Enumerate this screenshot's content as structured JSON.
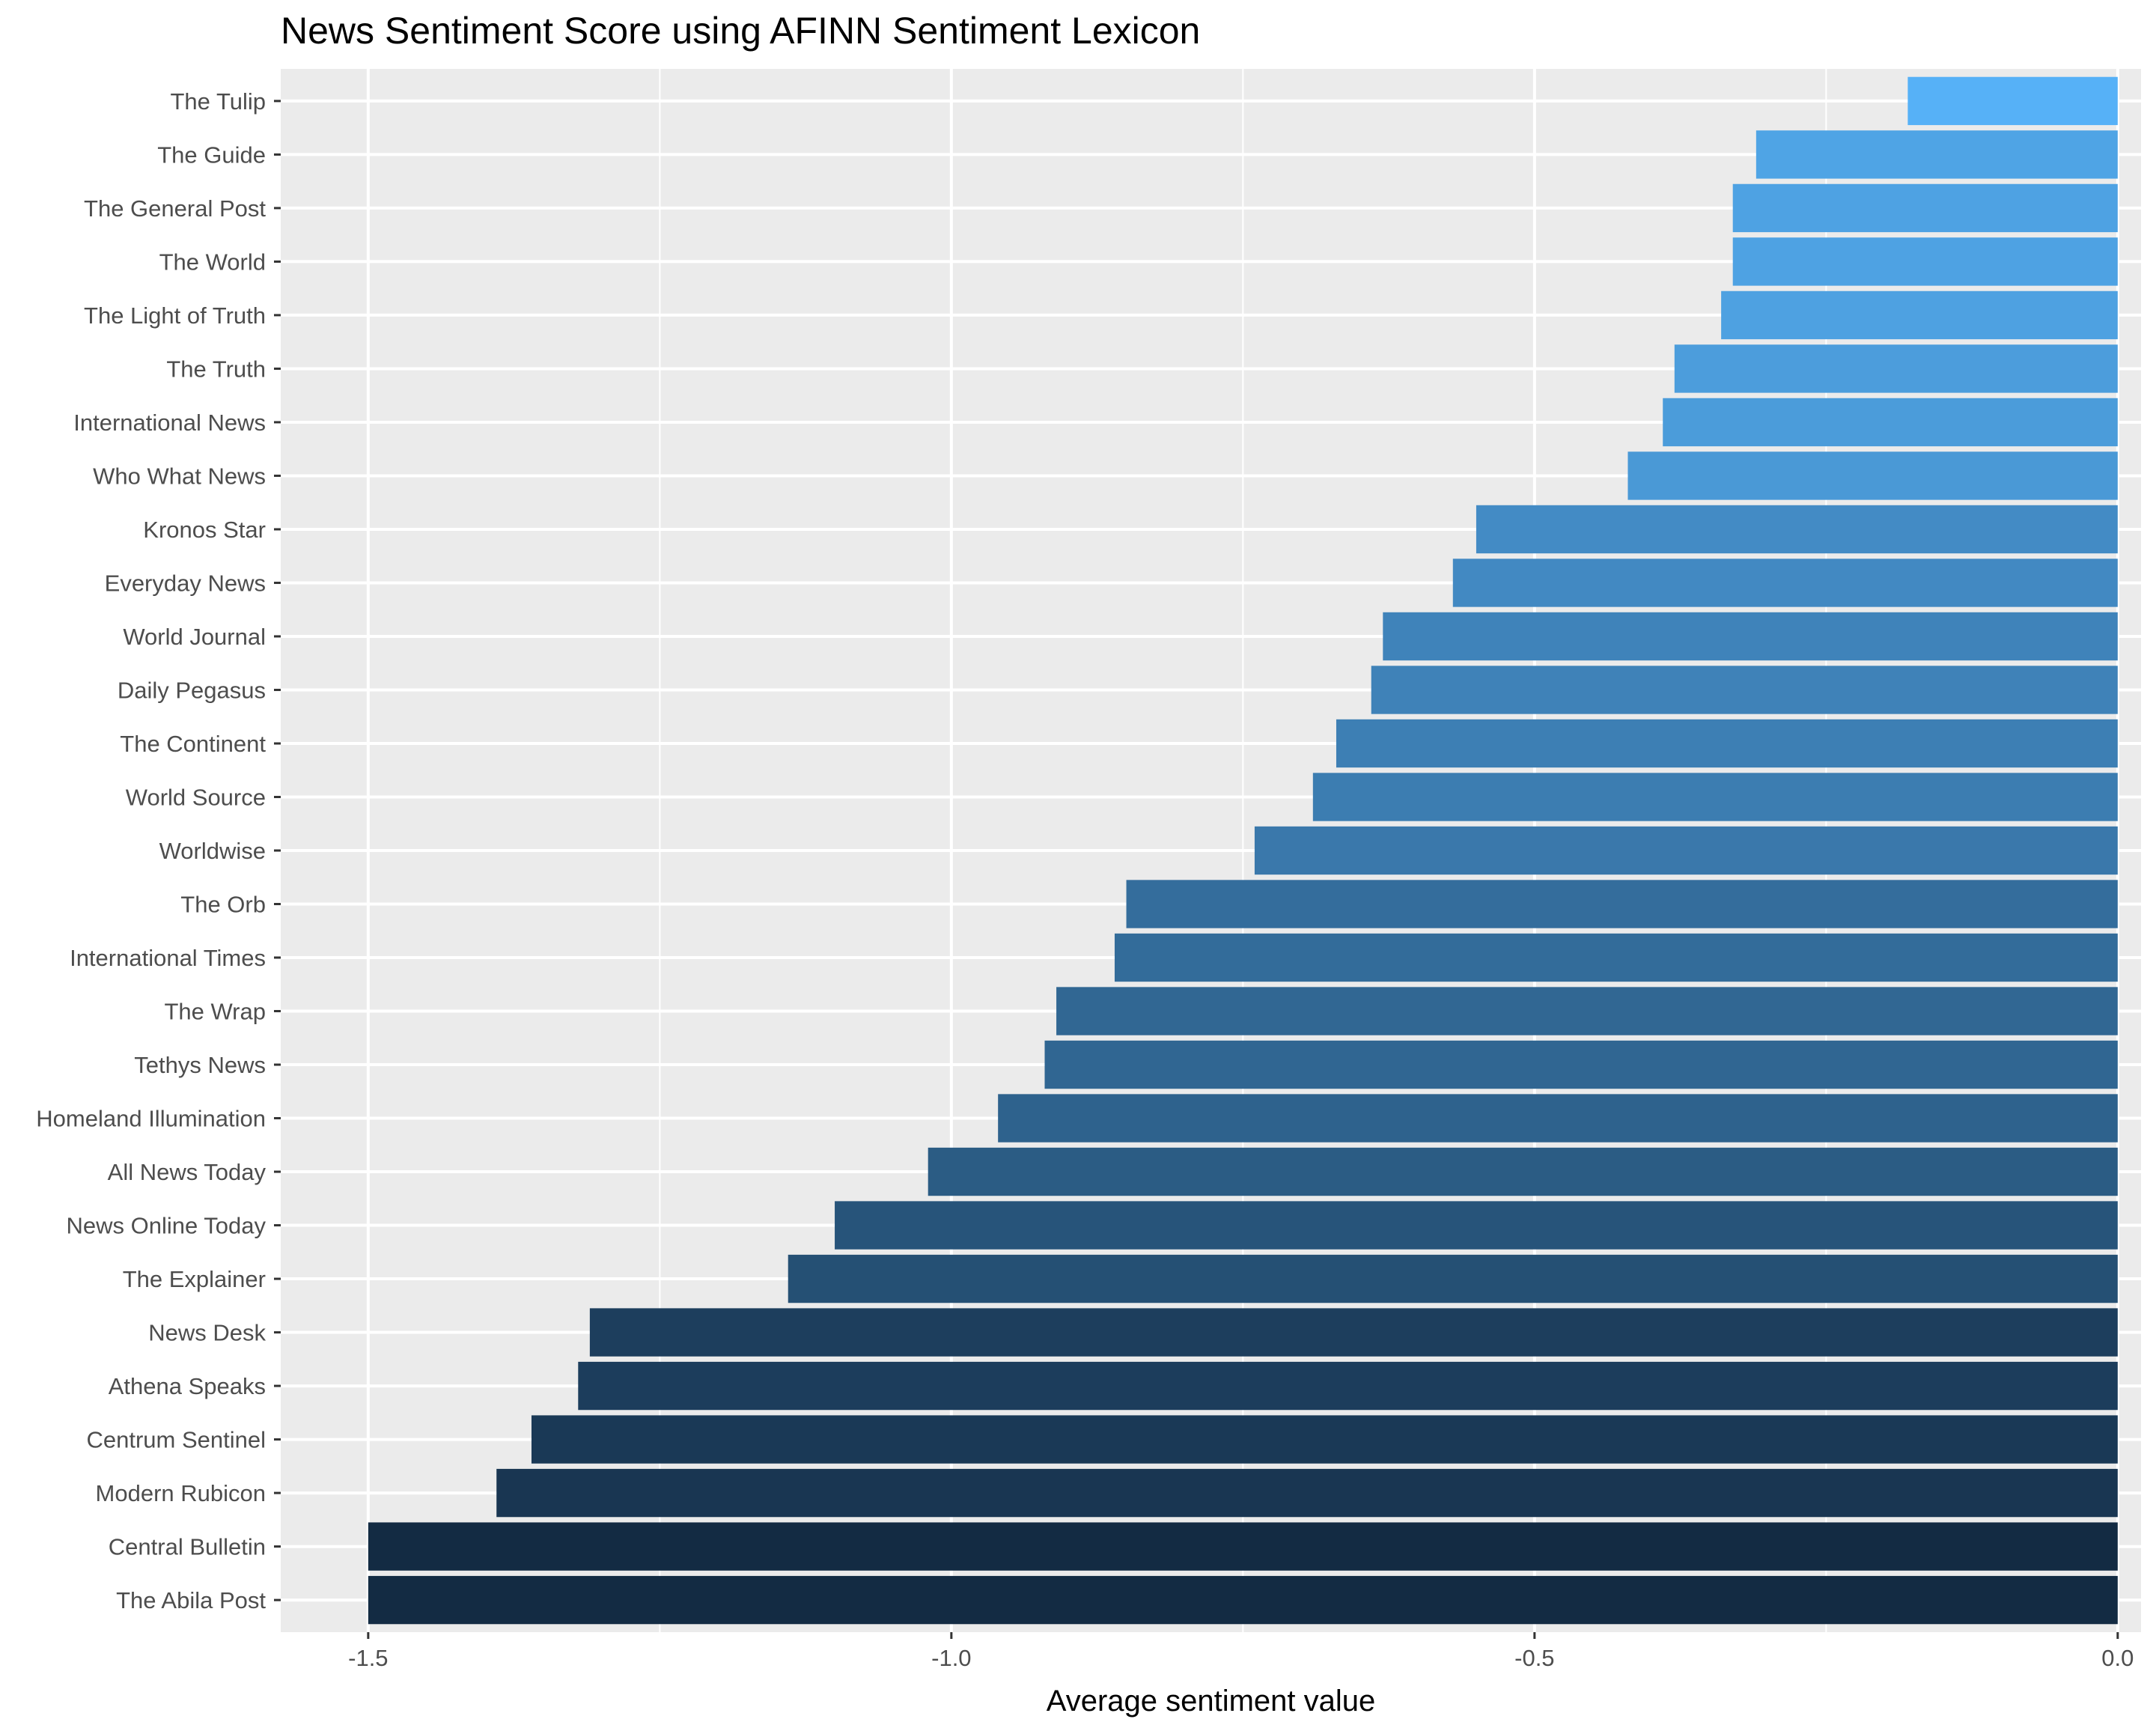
{
  "chart_data": {
    "type": "bar",
    "orientation": "horizontal",
    "title": "News Sentiment Score using AFINN Sentiment Lexicon",
    "xlabel": "Average sentiment value",
    "ylabel": "",
    "xlim": [
      -1.575,
      0.02
    ],
    "xticks": [
      -1.5,
      -1.0,
      -0.5,
      0.0
    ],
    "xtick_labels": [
      "-1.5",
      "-1.0",
      "-0.5",
      "0.0"
    ],
    "grid": true,
    "legend": "none",
    "categories": [
      "The Tulip",
      "The Guide",
      "The General Post",
      "The World",
      "The Light of Truth",
      "The Truth",
      "International News",
      "Who What News",
      "Kronos Star",
      "Everyday News",
      "World Journal",
      "Daily Pegasus",
      "The Continent",
      "World Source",
      "Worldwise",
      "The Orb",
      "International Times",
      "The Wrap",
      "Tethys News",
      "Homeland Illumination",
      "All News Today",
      "News Online Today",
      "The Explainer",
      "News Desk",
      "Athena Speaks",
      "Centrum Sentinel",
      "Modern Rubicon",
      "Central Bulletin",
      "The Abila Post"
    ],
    "values": [
      -0.18,
      -0.31,
      -0.33,
      -0.33,
      -0.34,
      -0.38,
      -0.39,
      -0.42,
      -0.55,
      -0.57,
      -0.63,
      -0.64,
      -0.67,
      -0.69,
      -0.74,
      -0.85,
      -0.86,
      -0.91,
      -0.92,
      -0.96,
      -1.02,
      -1.1,
      -1.14,
      -1.31,
      -1.32,
      -1.36,
      -1.39,
      -1.5,
      -1.5
    ],
    "colors": {
      "fill_low": "#132B43",
      "fill_high": "#56B1F7",
      "panel_background": "#EBEBEB",
      "grid": "#FFFFFF"
    }
  }
}
